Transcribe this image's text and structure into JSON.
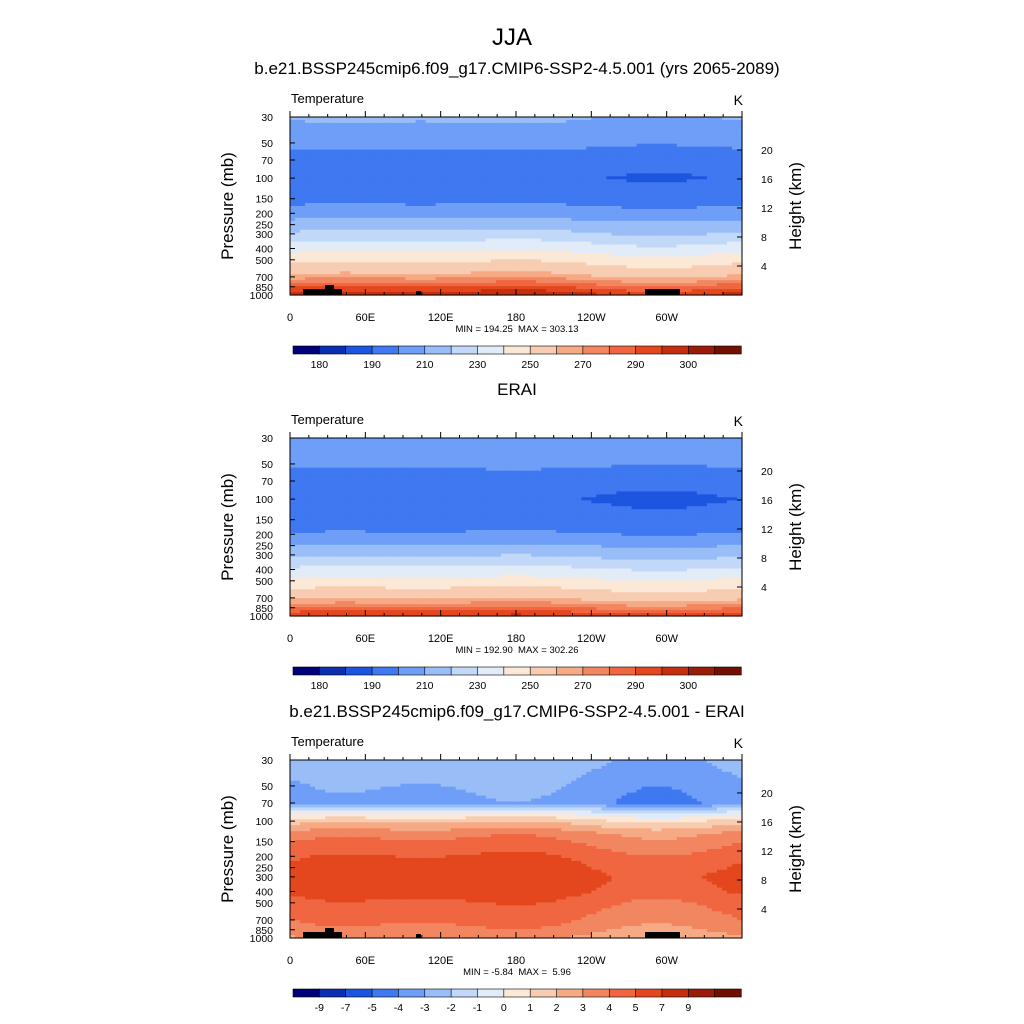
{
  "figure": {
    "title": "JJA"
  },
  "colors": {
    "absolute": [
      "#00007a",
      "#0a2fb0",
      "#1c55e0",
      "#3f78f0",
      "#6e9ef7",
      "#98bdf7",
      "#c2d8f8",
      "#e2ecf8",
      "#fbe8d6",
      "#f7ccb0",
      "#f5aa85",
      "#f28660",
      "#ef6640",
      "#e4471e",
      "#c4300f",
      "#9a1c08",
      "#701000"
    ],
    "difference": [
      "#00007a",
      "#0a2fb0",
      "#1c55e0",
      "#3f78f0",
      "#6e9ef7",
      "#98bdf7",
      "#c2d8f8",
      "#e2ecf8",
      "#fbe8d6",
      "#f7ccb0",
      "#f5aa85",
      "#f28660",
      "#ef6640",
      "#e4471e",
      "#c4300f",
      "#9a1c08",
      "#701000"
    ]
  },
  "chart_data": [
    {
      "type": "heatmap",
      "title": "b.e21.BSSP245cmip6.f09_g17.CMIP6-SSP2-4.5.001 (yrs 2065-2089)",
      "variable_label": "Temperature",
      "units": "K",
      "ylabel": "Pressure (mb)",
      "ylabel_right": "Height (km)",
      "x_ticks": [
        "0",
        "60E",
        "120E",
        "180",
        "120W",
        "60W"
      ],
      "x_tick_values": [
        0,
        60,
        120,
        180,
        240,
        300
      ],
      "xlim": [
        0,
        360
      ],
      "y_ticks": [
        "30",
        "50",
        "70",
        "100",
        "150",
        "200",
        "250",
        "300",
        "400",
        "500",
        "700",
        "850",
        "1000"
      ],
      "y_tick_values": [
        30,
        50,
        70,
        100,
        150,
        200,
        250,
        300,
        400,
        500,
        700,
        850,
        1000
      ],
      "ylim": [
        30,
        1000
      ],
      "y_scale": "log",
      "height_ticks": [
        "4",
        "8",
        "12",
        "16",
        "20"
      ],
      "height_tick_values": [
        4,
        8,
        12,
        16,
        20
      ],
      "stats_text": "MIN = 194.25  MAX = 303.13",
      "colorbar_labels": [
        "180",
        "190",
        "210",
        "230",
        "250",
        "270",
        "290",
        "300"
      ],
      "scale": "absolute",
      "field": "absolute",
      "profile": [
        [
          30,
          221
        ],
        [
          50,
          213
        ],
        [
          70,
          204
        ],
        [
          100,
          201
        ],
        [
          150,
          206
        ],
        [
          200,
          215
        ],
        [
          250,
          224
        ],
        [
          300,
          232
        ],
        [
          400,
          246
        ],
        [
          500,
          257
        ],
        [
          700,
          272
        ],
        [
          850,
          284
        ],
        [
          1000,
          293
        ]
      ],
      "zonal_amplitude": 4,
      "topography": true
    },
    {
      "type": "heatmap",
      "title": "ERAI",
      "variable_label": "Temperature",
      "units": "K",
      "ylabel": "Pressure (mb)",
      "ylabel_right": "Height (km)",
      "x_ticks": [
        "0",
        "60E",
        "120E",
        "180",
        "120W",
        "60W"
      ],
      "x_tick_values": [
        0,
        60,
        120,
        180,
        240,
        300
      ],
      "xlim": [
        0,
        360
      ],
      "y_ticks": [
        "30",
        "50",
        "70",
        "100",
        "150",
        "200",
        "250",
        "300",
        "400",
        "500",
        "700",
        "850",
        "1000"
      ],
      "y_tick_values": [
        30,
        50,
        70,
        100,
        150,
        200,
        250,
        300,
        400,
        500,
        700,
        850,
        1000
      ],
      "ylim": [
        30,
        1000
      ],
      "y_scale": "log",
      "height_ticks": [
        "4",
        "8",
        "12",
        "16",
        "20"
      ],
      "height_tick_values": [
        4,
        8,
        12,
        16,
        20
      ],
      "stats_text": "MIN = 192.90  MAX = 302.26",
      "colorbar_labels": [
        "180",
        "190",
        "210",
        "230",
        "250",
        "270",
        "290",
        "300"
      ],
      "scale": "absolute",
      "field": "absolute",
      "profile": [
        [
          30,
          219
        ],
        [
          50,
          212
        ],
        [
          70,
          203
        ],
        [
          100,
          200
        ],
        [
          150,
          203
        ],
        [
          200,
          211
        ],
        [
          250,
          220
        ],
        [
          300,
          228
        ],
        [
          400,
          242
        ],
        [
          500,
          253
        ],
        [
          700,
          268
        ],
        [
          850,
          280
        ],
        [
          1000,
          290
        ]
      ],
      "zonal_amplitude": 3,
      "topography": false
    },
    {
      "type": "heatmap",
      "title": "b.e21.BSSP245cmip6.f09_g17.CMIP6-SSP2-4.5.001 - ERAI",
      "variable_label": "Temperature",
      "units": "K",
      "ylabel": "Pressure (mb)",
      "ylabel_right": "Height (km)",
      "x_ticks": [
        "0",
        "60E",
        "120E",
        "180",
        "120W",
        "60W"
      ],
      "x_tick_values": [
        0,
        60,
        120,
        180,
        240,
        300
      ],
      "xlim": [
        0,
        360
      ],
      "y_ticks": [
        "30",
        "50",
        "70",
        "100",
        "150",
        "200",
        "250",
        "300",
        "400",
        "500",
        "700",
        "850",
        "1000"
      ],
      "y_tick_values": [
        30,
        50,
        70,
        100,
        150,
        200,
        250,
        300,
        400,
        500,
        700,
        850,
        1000
      ],
      "ylim": [
        30,
        1000
      ],
      "y_scale": "log",
      "height_ticks": [
        "4",
        "8",
        "12",
        "16",
        "20"
      ],
      "height_tick_values": [
        4,
        8,
        12,
        16,
        20
      ],
      "stats_text": "MIN = -5.84  MAX =  5.96",
      "colorbar_labels": [
        "-9",
        "-7",
        "-5",
        "-4",
        "-3",
        "-2",
        "-1",
        "0",
        "1",
        "2",
        "3",
        "4",
        "5",
        "7",
        "9"
      ],
      "scale": "difference",
      "field": "difference",
      "profile": [
        [
          30,
          -3.5
        ],
        [
          50,
          -4.2
        ],
        [
          70,
          -4.5
        ],
        [
          85,
          -1.5
        ],
        [
          100,
          0.5
        ],
        [
          130,
          2.5
        ],
        [
          200,
          3.8
        ],
        [
          300,
          4.5
        ],
        [
          400,
          4.2
        ],
        [
          500,
          3.6
        ],
        [
          700,
          3.0
        ],
        [
          850,
          2.5
        ],
        [
          1000,
          1.8
        ]
      ],
      "zonal_amplitude": 0.8,
      "topography": true
    }
  ]
}
